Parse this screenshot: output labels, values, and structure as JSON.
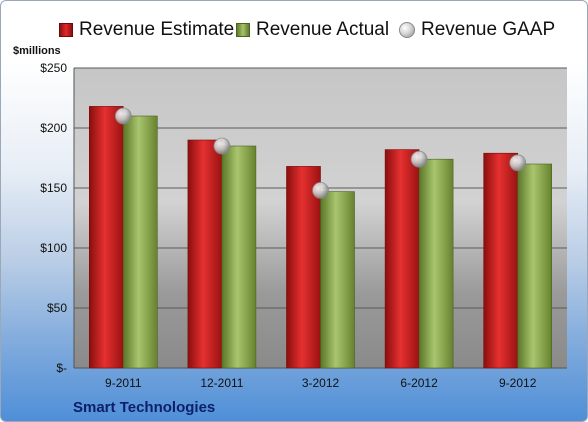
{
  "legend": {
    "estimate": "Revenue Estimate",
    "actual": "Revenue Actual",
    "gaap": "Revenue GAAP"
  },
  "unit_label": "$millions",
  "company": "Smart Technologies",
  "colors": {
    "estimate": "#c81e1e",
    "actual": "#8aab4e",
    "gaap": "#c8c8c8",
    "company_text": "#0d1f6b"
  },
  "chart_data": {
    "type": "bar",
    "categories": [
      "9-2011",
      "12-2011",
      "3-2012",
      "6-2012",
      "9-2012"
    ],
    "series": [
      {
        "name": "Revenue Estimate",
        "values": [
          218,
          190,
          168,
          182,
          179
        ]
      },
      {
        "name": "Revenue Actual",
        "values": [
          210,
          185,
          147,
          174,
          170
        ]
      },
      {
        "name": "Revenue GAAP",
        "marker": "circle",
        "values": [
          210,
          185,
          148,
          174,
          171
        ]
      }
    ],
    "y_ticks": [
      "$-",
      "$50",
      "$100",
      "$150",
      "$200",
      "$250"
    ],
    "ylim": [
      0,
      250
    ],
    "ylabel": "$millions",
    "grid": true,
    "legend_position": "top"
  }
}
